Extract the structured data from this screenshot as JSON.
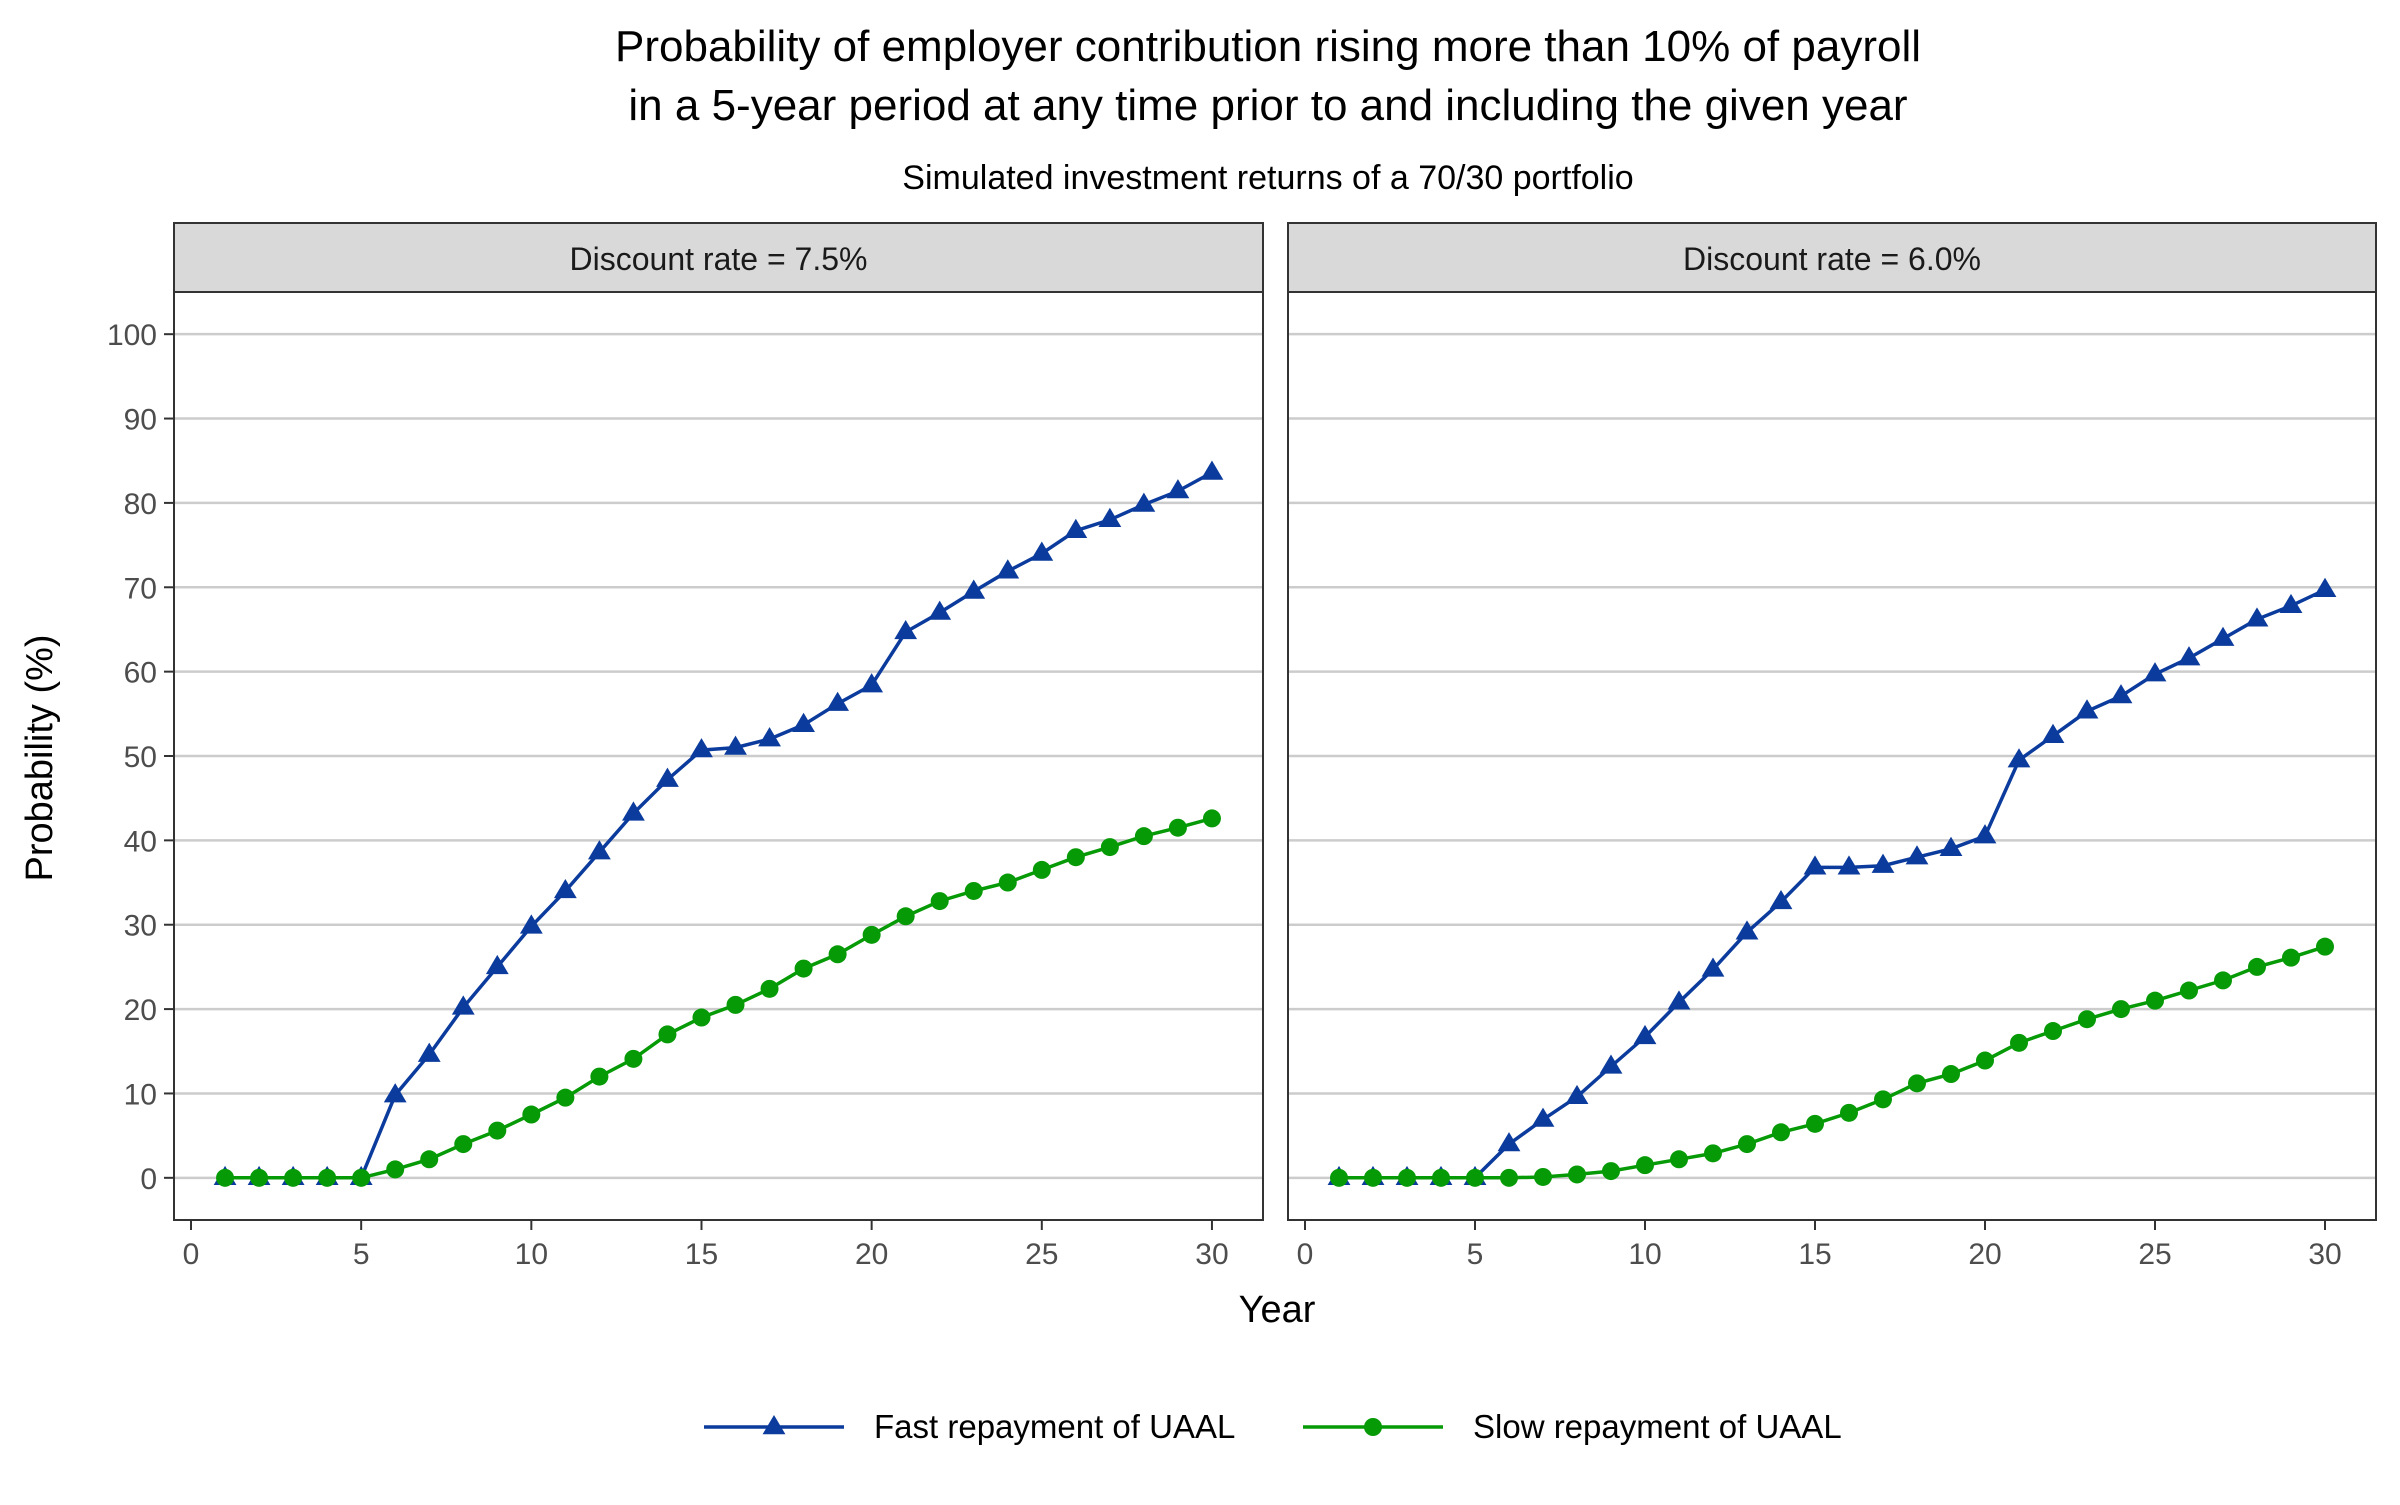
{
  "chart_data": {
    "type": "line",
    "title_line1": "Probability of employer contribution rising more than 10% of payroll",
    "title_line2": "in a 5-year period at any time prior to and including the given year",
    "subtitle": "Simulated investment returns of a 70/30 portfolio",
    "xlabel": "Year",
    "ylabel": "Probability (%)",
    "xlim": [
      -0.5,
      31.5
    ],
    "ylim": [
      -5,
      105
    ],
    "x_ticks": [
      0,
      5,
      10,
      15,
      20,
      25,
      30
    ],
    "y_ticks": [
      0,
      10,
      20,
      30,
      40,
      50,
      60,
      70,
      80,
      90,
      100
    ],
    "grid": true,
    "legend_position": "bottom",
    "x": [
      1,
      2,
      3,
      4,
      5,
      6,
      7,
      8,
      9,
      10,
      11,
      12,
      13,
      14,
      15,
      16,
      17,
      18,
      19,
      20,
      21,
      22,
      23,
      24,
      25,
      26,
      27,
      28,
      29,
      30
    ],
    "series_styles": [
      {
        "name": "Fast repayment of UAAL",
        "color": "#0b3b9c",
        "marker": "triangle"
      },
      {
        "name": "Slow repayment of UAAL",
        "color": "#079a07",
        "marker": "circle"
      }
    ],
    "panels": [
      {
        "strip": "Discount rate = 7.5%",
        "series": [
          {
            "name": "Fast repayment of UAAL",
            "values": [
              0,
              0,
              0,
              0,
              0,
              9.8,
              14.6,
              20.2,
              25,
              29.8,
              34,
              38.6,
              43.2,
              47.2,
              50.7,
              51,
              52,
              53.7,
              56.2,
              58.4,
              64.7,
              67,
              69.5,
              71.9,
              74,
              76.7,
              78,
              79.8,
              81.4,
              83.6
            ]
          },
          {
            "name": "Slow repayment of UAAL",
            "values": [
              0,
              0,
              0,
              0,
              0,
              1,
              2.2,
              4,
              5.6,
              7.5,
              9.5,
              12,
              14.1,
              17,
              19,
              20.5,
              22.4,
              24.8,
              26.5,
              28.8,
              31,
              32.8,
              34,
              35,
              36.5,
              38,
              39.2,
              40.5,
              41.5,
              42.6
            ]
          }
        ]
      },
      {
        "strip": "Discount rate = 6.0%",
        "series": [
          {
            "name": "Fast repayment of UAAL",
            "values": [
              0,
              0,
              0,
              0,
              0,
              4,
              6.9,
              9.6,
              13.2,
              16.7,
              20.8,
              24.7,
              29.1,
              32.7,
              36.8,
              36.8,
              37,
              38,
              39,
              40.5,
              49.5,
              52.4,
              55.3,
              57.1,
              59.7,
              61.6,
              63.9,
              66.2,
              67.8,
              69.7
            ]
          },
          {
            "name": "Slow repayment of UAAL",
            "values": [
              0,
              0,
              0,
              0,
              0,
              0,
              0.1,
              0.4,
              0.8,
              1.5,
              2.2,
              2.9,
              4,
              5.4,
              6.4,
              7.7,
              9.3,
              11.2,
              12.3,
              13.9,
              16,
              17.4,
              18.8,
              20,
              21,
              22.2,
              23.4,
              25,
              26.1,
              27.4
            ]
          }
        ]
      }
    ]
  }
}
